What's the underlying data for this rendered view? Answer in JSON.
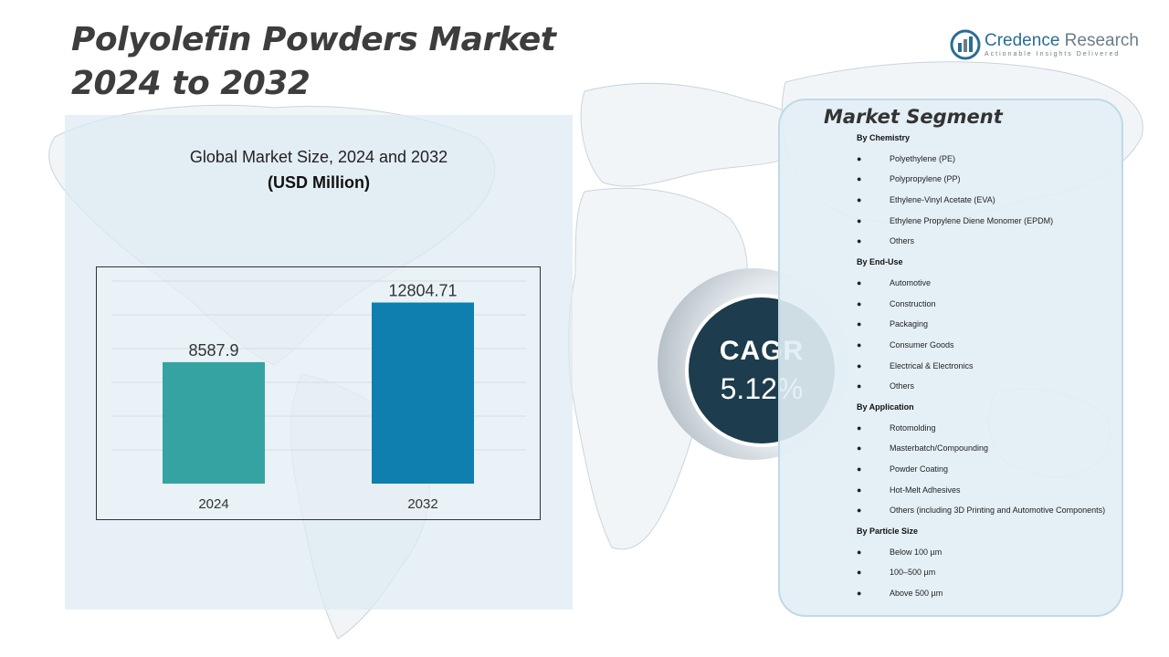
{
  "title": {
    "line1": "Polyolefin Powders Market",
    "line2": "2024 to 2032"
  },
  "brand": {
    "name_part1": "Credence",
    "name_part2": " Research",
    "tagline": "Actionable Insights Delivered",
    "color": "#2a6d95"
  },
  "chart": {
    "heading": "Global Market Size, 2024 and 2032",
    "unit": "(USD Million)"
  },
  "chart_data": {
    "type": "bar",
    "title": "Global Market Size, 2024 and 2032",
    "ylabel": "USD Million",
    "xlabel": "",
    "categories": [
      "2024",
      "2032"
    ],
    "values": [
      8587.9,
      12804.71
    ],
    "value_labels": [
      "8587.9",
      "12804.71"
    ],
    "colors": [
      "#35a3a2",
      "#0e7fae"
    ],
    "ylim": [
      0,
      14000
    ],
    "grid": true
  },
  "cagr": {
    "label": "CAGR",
    "value": "5.12%"
  },
  "segments": {
    "title": "Market Segment",
    "groups": [
      {
        "title": "By Chemistry",
        "items": [
          "Polyethylene (PE)",
          "Polypropylene (PP)",
          "Ethylene-Vinyl Acetate (EVA)",
          "Ethylene Propylene Diene Monomer (EPDM)",
          "Others"
        ]
      },
      {
        "title": "By End-Use",
        "items": [
          "Automotive",
          "Construction",
          "Packaging",
          "Consumer Goods",
          "Electrical & Electronics",
          "Others"
        ]
      },
      {
        "title": "By Application",
        "items": [
          "Rotomolding",
          "Masterbatch/Compounding",
          "Powder Coating",
          "Hot-Melt Adhesives",
          "Others (including 3D Printing and Automotive Components)"
        ]
      },
      {
        "title": "By Particle Size",
        "items": [
          "Below 100 µm",
          "100–500 µm",
          "Above 500 µm"
        ]
      }
    ]
  }
}
